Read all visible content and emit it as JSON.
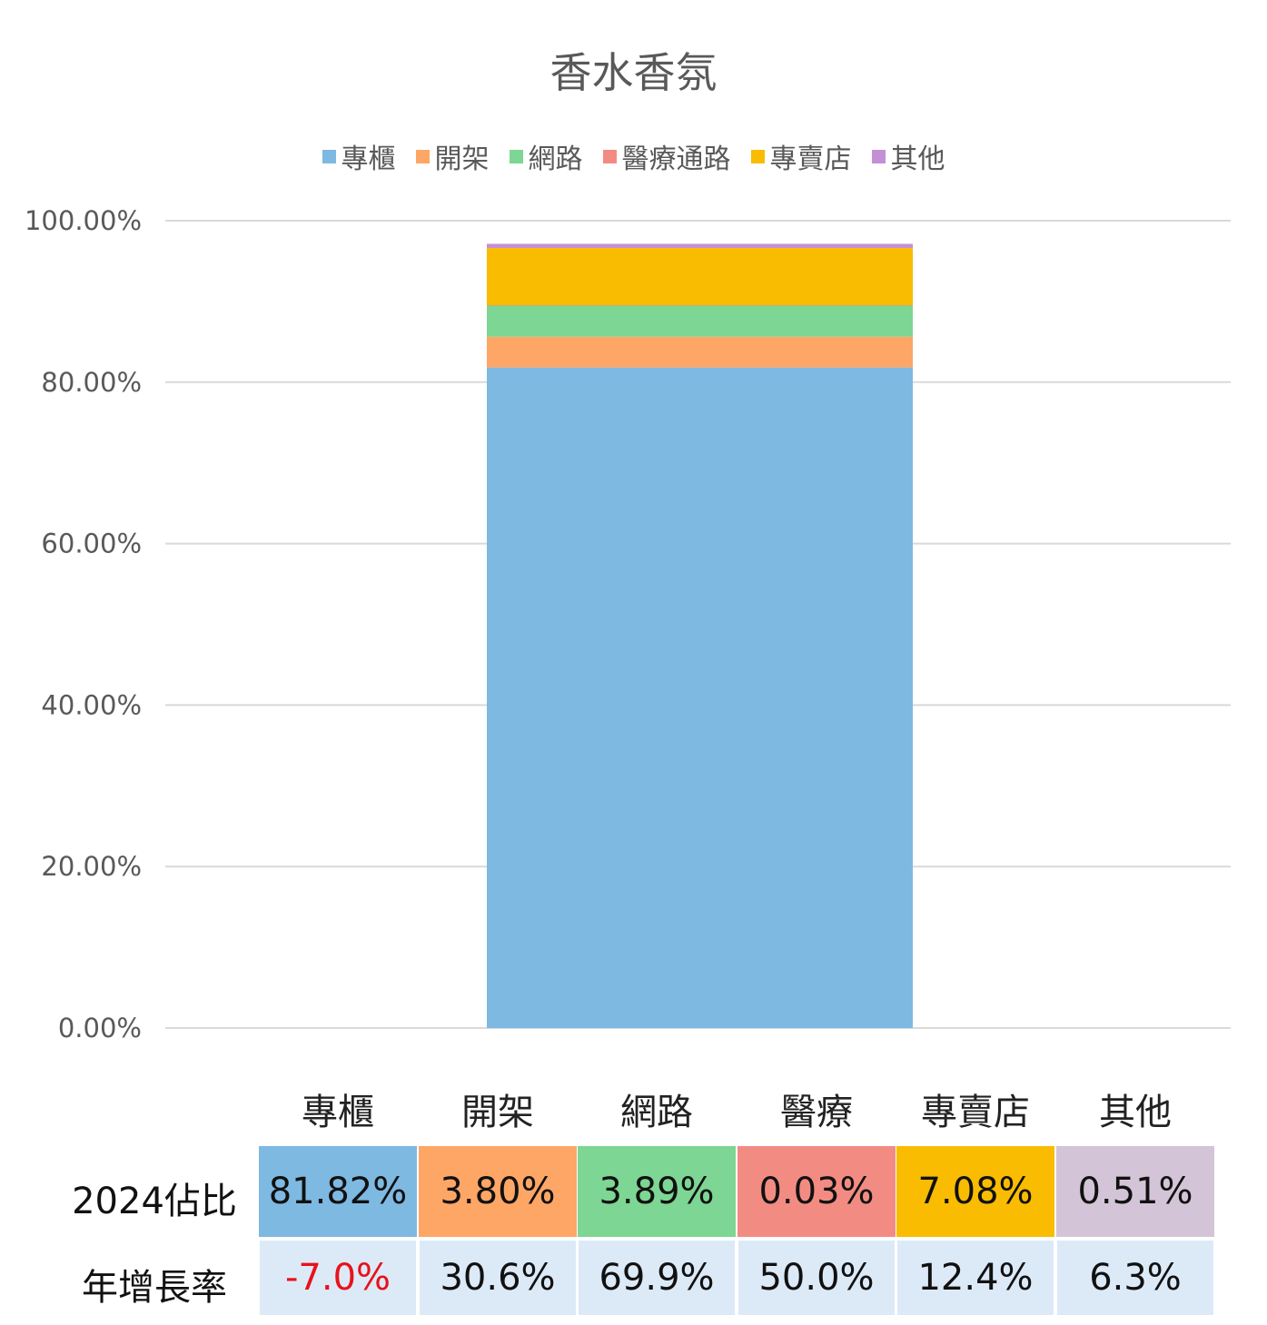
{
  "chart_data": {
    "type": "bar",
    "stacked": true,
    "title": "香水香氛",
    "categories": [
      ""
    ],
    "ylim": [
      0,
      100
    ],
    "y_ticks": [
      "0.00%",
      "20.00%",
      "40.00%",
      "60.00%",
      "80.00%",
      "100.00%"
    ],
    "grid": true,
    "legend_position": "top",
    "series": [
      {
        "name": "專櫃",
        "values": [
          81.82
        ],
        "color": "#7EB9E2"
      },
      {
        "name": "開架",
        "values": [
          3.8
        ],
        "color": "#FEA666"
      },
      {
        "name": "網路",
        "values": [
          3.89
        ],
        "color": "#7DD693"
      },
      {
        "name": "醫療通路",
        "values": [
          0.03
        ],
        "color": "#F28C82"
      },
      {
        "name": "專賣店",
        "values": [
          7.08
        ],
        "color": "#F9BC00"
      },
      {
        "name": "其他",
        "values": [
          0.51
        ],
        "color": "#C58FD6"
      }
    ]
  },
  "table": {
    "columns": [
      "專櫃",
      "開架",
      "網路",
      "醫療",
      "專賣店",
      "其他"
    ],
    "share_label": "2024佔比",
    "share_values": [
      "81.82%",
      "3.80%",
      "3.89%",
      "0.03%",
      "7.08%",
      "0.51%"
    ],
    "share_colors": [
      "#7EB9E2",
      "#FEA666",
      "#7DD693",
      "#F28C82",
      "#F9BC00",
      "#D3C5D7"
    ],
    "growth_label": "年增長率",
    "growth_values": [
      "-7.0%",
      "30.6%",
      "69.9%",
      "50.0%",
      "12.4%",
      "6.3%"
    ],
    "growth_bg": "#DCEAF8",
    "negative_color": "#E8121B"
  }
}
